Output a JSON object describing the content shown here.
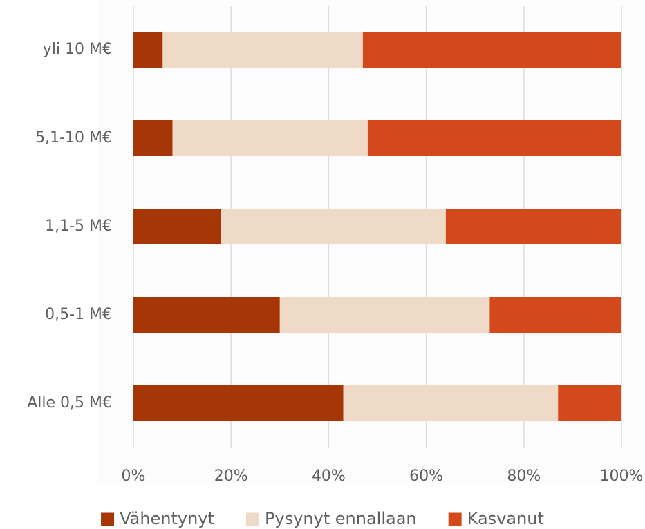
{
  "chart_data": {
    "type": "bar",
    "orientation": "horizontal",
    "stacked": "percent",
    "categories": [
      "yli 10 M€",
      "5,1-10 M€",
      "1,1-5 M€",
      "0,5-1 M€",
      "Alle 0,5 M€"
    ],
    "series": [
      {
        "name": "Vähentynyt",
        "color": "#a63606",
        "values": [
          6,
          8,
          18,
          30,
          43
        ]
      },
      {
        "name": "Pysynyt ennallaan",
        "color": "#eedac6",
        "values": [
          41,
          40,
          46,
          43,
          44
        ]
      },
      {
        "name": "Kasvanut",
        "color": "#d3491c",
        "values": [
          53,
          52,
          36,
          27,
          13
        ]
      }
    ],
    "xlim": [
      0,
      100
    ],
    "xticks": [
      "0%",
      "20%",
      "40%",
      "60%",
      "80%",
      "100%"
    ],
    "grid": "vertical",
    "legend": "bottom",
    "title": "",
    "xlabel": "",
    "ylabel": ""
  }
}
